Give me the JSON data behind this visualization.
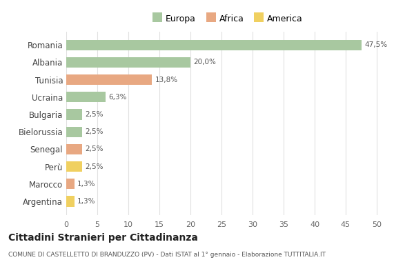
{
  "countries": [
    "Romania",
    "Albania",
    "Tunisia",
    "Ucraina",
    "Bulgaria",
    "Bielorussia",
    "Senegal",
    "Perù",
    "Marocco",
    "Argentina"
  ],
  "values": [
    47.5,
    20.0,
    13.8,
    6.3,
    2.5,
    2.5,
    2.5,
    2.5,
    1.3,
    1.3
  ],
  "labels": [
    "47,5%",
    "20,0%",
    "13,8%",
    "6,3%",
    "2,5%",
    "2,5%",
    "2,5%",
    "2,5%",
    "1,3%",
    "1,3%"
  ],
  "continents": [
    "Europa",
    "Europa",
    "Africa",
    "Europa",
    "Europa",
    "Europa",
    "Africa",
    "America",
    "Africa",
    "America"
  ],
  "colors": {
    "Europa": "#a8c8a0",
    "Africa": "#e8a882",
    "America": "#f0d060"
  },
  "legend_items": [
    "Europa",
    "Africa",
    "America"
  ],
  "title": "Cittadini Stranieri per Cittadinanza",
  "subtitle": "COMUNE DI CASTELLETTO DI BRANDUZZO (PV) - Dati ISTAT al 1° gennaio - Elaborazione TUTTITALIA.IT",
  "xlim": [
    0,
    52
  ],
  "xticks": [
    0,
    5,
    10,
    15,
    20,
    25,
    30,
    35,
    40,
    45,
    50
  ],
  "bg_color": "#ffffff",
  "grid_color": "#e0e0e0"
}
